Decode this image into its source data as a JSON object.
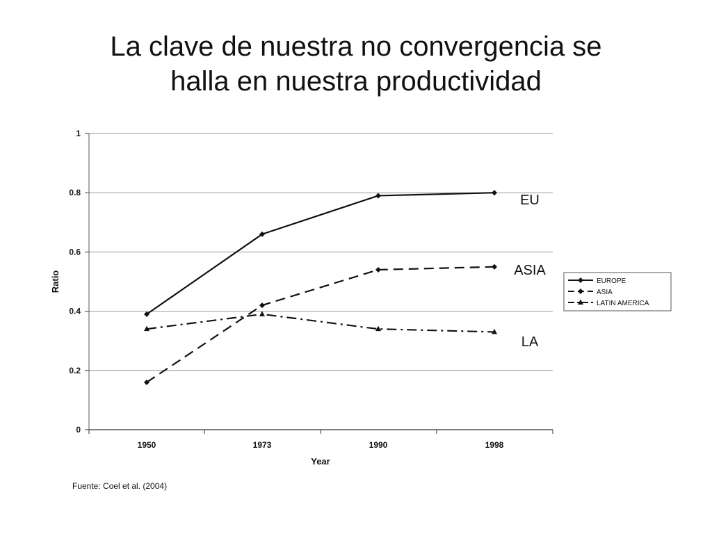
{
  "slide": {
    "title_lines": [
      "La clave de nuestra no convergencia se",
      "halla en nuestra productividad"
    ],
    "source": "Fuente: Coel et al. (2004)"
  },
  "chart_data": {
    "type": "line",
    "categories": [
      "1950",
      "1973",
      "1990",
      "1998"
    ],
    "xlabel": "Year",
    "ylabel": "Ratio",
    "ylim": [
      0,
      1
    ],
    "yticks": [
      0,
      0.2,
      0.4,
      0.6,
      0.8,
      1
    ],
    "ytick_labels": [
      "0",
      "0.2",
      "0.4",
      "0.6",
      "0.8",
      "1"
    ],
    "grid": true,
    "legend_position": "right",
    "series": [
      {
        "name": "EUROPE",
        "end_label": "EU",
        "values": [
          0.39,
          0.66,
          0.79,
          0.8
        ],
        "dash": "solid",
        "marker": "diamond",
        "color": "#111111"
      },
      {
        "name": "ASIA",
        "end_label": "ASIA",
        "values": [
          0.16,
          0.42,
          0.54,
          0.55
        ],
        "dash": "dashed",
        "marker": "diamond",
        "color": "#111111"
      },
      {
        "name": "LATIN AMERICA",
        "end_label": "LA",
        "values": [
          0.34,
          0.39,
          0.34,
          0.33
        ],
        "dash": "dashdot",
        "marker": "triangle",
        "color": "#111111"
      }
    ]
  }
}
